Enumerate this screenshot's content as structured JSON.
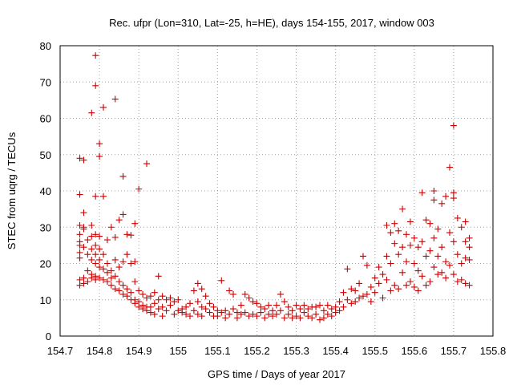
{
  "chart_data": {
    "type": "scatter",
    "title": "Rec. ufpr (Lon=310, Lat=-25, h=HE), days 154-155, 2017, window 003",
    "xlabel": "GPS time / Days of year 2017",
    "ylabel": "STEC from uqrg / TECUs",
    "xlim": [
      154.7,
      155.8
    ],
    "ylim": [
      0,
      80
    ],
    "x_ticks": [
      "154.7",
      "154.8",
      "154.9",
      "155",
      "155.1",
      "155.2",
      "155.3",
      "155.4",
      "155.5",
      "155.6",
      "155.7",
      "155.8"
    ],
    "y_ticks": [
      "0",
      "10",
      "20",
      "30",
      "40",
      "50",
      "60",
      "70",
      "80"
    ],
    "grid": true,
    "marker": "+",
    "color": "#cc0000",
    "series": [
      {
        "name": "",
        "points": [
          [
            154.75,
            49.0
          ],
          [
            154.76,
            48.5
          ],
          [
            154.78,
            61.5
          ],
          [
            154.79,
            77.3
          ],
          [
            154.79,
            69.0
          ],
          [
            154.8,
            53.0
          ],
          [
            154.8,
            49.5
          ],
          [
            154.81,
            63.0
          ],
          [
            154.81,
            38.5
          ],
          [
            154.79,
            38.5
          ],
          [
            154.75,
            39.0
          ],
          [
            154.84,
            65.3
          ],
          [
            154.86,
            44.0
          ],
          [
            154.9,
            40.5
          ],
          [
            154.92,
            47.5
          ],
          [
            154.76,
            34.0
          ],
          [
            154.76,
            30.0
          ],
          [
            154.78,
            30.5
          ],
          [
            154.79,
            28.0
          ],
          [
            154.8,
            27.5
          ],
          [
            154.82,
            26.5
          ],
          [
            154.83,
            30.0
          ],
          [
            154.85,
            32.0
          ],
          [
            154.86,
            33.5
          ],
          [
            154.87,
            28.0
          ],
          [
            154.88,
            27.8
          ],
          [
            154.89,
            31.0
          ],
          [
            154.84,
            27.2
          ],
          [
            154.75,
            30.5
          ],
          [
            154.75,
            28.0
          ],
          [
            154.75,
            26.0
          ],
          [
            154.75,
            25.0
          ],
          [
            154.75,
            23.0
          ],
          [
            154.75,
            21.5
          ],
          [
            154.75,
            15.5
          ],
          [
            154.75,
            14.0
          ],
          [
            154.76,
            29.5
          ],
          [
            154.76,
            24.5
          ],
          [
            154.76,
            16.0
          ],
          [
            154.76,
            14.5
          ],
          [
            154.77,
            26.5
          ],
          [
            154.77,
            22.5
          ],
          [
            154.77,
            18.0
          ],
          [
            154.77,
            15.0
          ],
          [
            154.78,
            27.5
          ],
          [
            154.78,
            24.0
          ],
          [
            154.78,
            21.0
          ],
          [
            154.78,
            17.0
          ],
          [
            154.78,
            16.0
          ],
          [
            154.79,
            25.0
          ],
          [
            154.79,
            22.5
          ],
          [
            154.79,
            20.0
          ],
          [
            154.79,
            16.5
          ],
          [
            154.79,
            15.5
          ],
          [
            154.8,
            24.0
          ],
          [
            154.8,
            21.0
          ],
          [
            154.8,
            19.0
          ],
          [
            154.8,
            16.0
          ],
          [
            154.81,
            22.5
          ],
          [
            154.81,
            18.5
          ],
          [
            154.81,
            15.5
          ],
          [
            154.82,
            20.0
          ],
          [
            154.82,
            17.5
          ],
          [
            154.82,
            15.0
          ],
          [
            154.83,
            18.0
          ],
          [
            154.83,
            16.0
          ],
          [
            154.83,
            14.0
          ],
          [
            154.84,
            21.0
          ],
          [
            154.84,
            16.5
          ],
          [
            154.84,
            13.0
          ],
          [
            154.85,
            19.0
          ],
          [
            154.85,
            15.0
          ],
          [
            154.85,
            12.5
          ],
          [
            154.86,
            20.5
          ],
          [
            154.86,
            14.0
          ],
          [
            154.86,
            11.5
          ],
          [
            154.87,
            22.5
          ],
          [
            154.87,
            13.0
          ],
          [
            154.87,
            11.0
          ],
          [
            154.88,
            20.0
          ],
          [
            154.88,
            12.0
          ],
          [
            154.88,
            10.0
          ],
          [
            154.89,
            20.5
          ],
          [
            154.89,
            15.0
          ],
          [
            154.89,
            10.0
          ],
          [
            154.89,
            9.0
          ],
          [
            154.9,
            12.5
          ],
          [
            154.9,
            9.5
          ],
          [
            154.9,
            8.0
          ],
          [
            154.91,
            11.5
          ],
          [
            154.91,
            8.5
          ],
          [
            154.91,
            7.5
          ],
          [
            154.92,
            10.5
          ],
          [
            154.92,
            8.0
          ],
          [
            154.92,
            7.0
          ],
          [
            154.93,
            11.0
          ],
          [
            154.93,
            8.0
          ],
          [
            154.93,
            6.5
          ],
          [
            154.94,
            12.0
          ],
          [
            154.94,
            9.0
          ],
          [
            154.94,
            6.0
          ],
          [
            154.95,
            16.5
          ],
          [
            154.95,
            10.0
          ],
          [
            154.95,
            7.5
          ],
          [
            154.96,
            11.0
          ],
          [
            154.96,
            8.0
          ],
          [
            154.96,
            5.5
          ],
          [
            154.97,
            10.0
          ],
          [
            154.97,
            7.0
          ],
          [
            154.98,
            10.5
          ],
          [
            154.98,
            8.5
          ],
          [
            154.99,
            9.5
          ],
          [
            154.99,
            6.0
          ],
          [
            155.0,
            10.0
          ],
          [
            155.0,
            7.0
          ],
          [
            155.01,
            7.5
          ],
          [
            155.01,
            6.5
          ],
          [
            155.02,
            8.0
          ],
          [
            155.02,
            6.0
          ],
          [
            155.03,
            9.0
          ],
          [
            155.03,
            5.5
          ],
          [
            155.04,
            12.5
          ],
          [
            155.04,
            7.0
          ],
          [
            155.05,
            14.5
          ],
          [
            155.05,
            9.5
          ],
          [
            155.05,
            6.0
          ],
          [
            155.06,
            13.0
          ],
          [
            155.06,
            8.0
          ],
          [
            155.06,
            5.5
          ],
          [
            155.07,
            11.0
          ],
          [
            155.07,
            7.5
          ],
          [
            155.08,
            9.0
          ],
          [
            155.08,
            6.5
          ],
          [
            155.09,
            8.0
          ],
          [
            155.09,
            5.5
          ],
          [
            155.1,
            7.0
          ],
          [
            155.1,
            5.5
          ],
          [
            155.11,
            15.3
          ],
          [
            155.11,
            6.5
          ],
          [
            155.12,
            7.0
          ],
          [
            155.12,
            5.0
          ],
          [
            155.13,
            12.5
          ],
          [
            155.13,
            6.0
          ],
          [
            155.14,
            11.5
          ],
          [
            155.14,
            7.5
          ],
          [
            155.15,
            6.5
          ],
          [
            155.15,
            5.0
          ],
          [
            155.16,
            8.5
          ],
          [
            155.16,
            6.0
          ],
          [
            155.17,
            11.5
          ],
          [
            155.17,
            6.5
          ],
          [
            155.18,
            10.5
          ],
          [
            155.18,
            5.5
          ],
          [
            155.19,
            9.5
          ],
          [
            155.19,
            6.0
          ],
          [
            155.2,
            9.0
          ],
          [
            155.2,
            5.5
          ],
          [
            155.21,
            8.0
          ],
          [
            155.21,
            6.5
          ],
          [
            155.22,
            7.5
          ],
          [
            155.22,
            5.0
          ],
          [
            155.23,
            8.5
          ],
          [
            155.23,
            6.0
          ],
          [
            155.24,
            7.0
          ],
          [
            155.24,
            5.5
          ],
          [
            155.25,
            8.5
          ],
          [
            155.25,
            6.0
          ],
          [
            155.26,
            11.5
          ],
          [
            155.26,
            7.0
          ],
          [
            155.27,
            9.5
          ],
          [
            155.27,
            5.0
          ],
          [
            155.28,
            8.0
          ],
          [
            155.28,
            6.0
          ],
          [
            155.29,
            7.0
          ],
          [
            155.29,
            5.0
          ],
          [
            155.3,
            8.5
          ],
          [
            155.3,
            5.5
          ],
          [
            155.31,
            7.5
          ],
          [
            155.31,
            5.0
          ],
          [
            155.32,
            8.5
          ],
          [
            155.32,
            6.5
          ],
          [
            155.33,
            7.5
          ],
          [
            155.33,
            5.5
          ],
          [
            155.34,
            8.0
          ],
          [
            155.34,
            5.0
          ],
          [
            155.35,
            8.0
          ],
          [
            155.35,
            6.0
          ],
          [
            155.36,
            8.5
          ],
          [
            155.36,
            4.5
          ],
          [
            155.37,
            7.0
          ],
          [
            155.37,
            5.0
          ],
          [
            155.38,
            8.5
          ],
          [
            155.38,
            6.0
          ],
          [
            155.39,
            7.5
          ],
          [
            155.39,
            5.5
          ],
          [
            155.4,
            8.0
          ],
          [
            155.4,
            6.5
          ],
          [
            155.41,
            9.5
          ],
          [
            155.41,
            7.0
          ],
          [
            155.42,
            12.0
          ],
          [
            155.42,
            8.0
          ],
          [
            155.43,
            18.5
          ],
          [
            155.43,
            10.0
          ],
          [
            155.44,
            13.0
          ],
          [
            155.44,
            9.0
          ],
          [
            155.45,
            12.5
          ],
          [
            155.45,
            9.5
          ],
          [
            155.46,
            14.5
          ],
          [
            155.46,
            10.5
          ],
          [
            155.47,
            22.0
          ],
          [
            155.47,
            11.0
          ],
          [
            155.48,
            19.5
          ],
          [
            155.48,
            11.5
          ],
          [
            155.49,
            13.5
          ],
          [
            155.49,
            9.5
          ],
          [
            155.5,
            16.0
          ],
          [
            155.5,
            12.0
          ],
          [
            155.51,
            19.0
          ],
          [
            155.51,
            14.5
          ],
          [
            155.52,
            17.0
          ],
          [
            155.52,
            10.5
          ],
          [
            155.53,
            30.5
          ],
          [
            155.53,
            22.0
          ],
          [
            155.53,
            15.5
          ],
          [
            155.54,
            28.5
          ],
          [
            155.54,
            20.0
          ],
          [
            155.54,
            12.5
          ],
          [
            155.55,
            31.0
          ],
          [
            155.55,
            25.5
          ],
          [
            155.55,
            14.0
          ],
          [
            155.56,
            29.0
          ],
          [
            155.56,
            22.5
          ],
          [
            155.56,
            13.0
          ],
          [
            155.57,
            35.0
          ],
          [
            155.57,
            24.5
          ],
          [
            155.57,
            17.5
          ],
          [
            155.58,
            28.0
          ],
          [
            155.58,
            20.5
          ],
          [
            155.58,
            14.0
          ],
          [
            155.59,
            31.5
          ],
          [
            155.59,
            25.0
          ],
          [
            155.59,
            15.0
          ],
          [
            155.6,
            27.0
          ],
          [
            155.6,
            20.0
          ],
          [
            155.6,
            13.5
          ],
          [
            155.61,
            24.5
          ],
          [
            155.61,
            18.0
          ],
          [
            155.61,
            12.5
          ],
          [
            155.62,
            39.5
          ],
          [
            155.62,
            26.0
          ],
          [
            155.62,
            16.5
          ],
          [
            155.63,
            32.0
          ],
          [
            155.63,
            22.0
          ],
          [
            155.63,
            14.0
          ],
          [
            155.64,
            31.0
          ],
          [
            155.64,
            23.5
          ],
          [
            155.64,
            15.0
          ],
          [
            155.65,
            40.0
          ],
          [
            155.65,
            37.5
          ],
          [
            155.65,
            27.0
          ],
          [
            155.65,
            19.0
          ],
          [
            155.66,
            29.5
          ],
          [
            155.66,
            22.0
          ],
          [
            155.66,
            17.0
          ],
          [
            155.67,
            36.5
          ],
          [
            155.67,
            24.5
          ],
          [
            155.67,
            17.5
          ],
          [
            155.68,
            38.5
          ],
          [
            155.68,
            20.5
          ],
          [
            155.68,
            16.0
          ],
          [
            155.69,
            46.5
          ],
          [
            155.69,
            28.5
          ],
          [
            155.69,
            19.5
          ],
          [
            155.7,
            58.0
          ],
          [
            155.7,
            39.5
          ],
          [
            155.7,
            38.0
          ],
          [
            155.7,
            26.0
          ],
          [
            155.7,
            17.0
          ],
          [
            155.71,
            32.5
          ],
          [
            155.71,
            22.5
          ],
          [
            155.71,
            15.0
          ],
          [
            155.72,
            30.0
          ],
          [
            155.72,
            20.0
          ],
          [
            155.72,
            15.5
          ],
          [
            155.73,
            31.5
          ],
          [
            155.73,
            26.0
          ],
          [
            155.73,
            21.5
          ],
          [
            155.73,
            14.5
          ],
          [
            155.74,
            27.0
          ],
          [
            155.74,
            24.5
          ],
          [
            155.74,
            21.0
          ],
          [
            155.74,
            14.0
          ]
        ]
      }
    ]
  }
}
